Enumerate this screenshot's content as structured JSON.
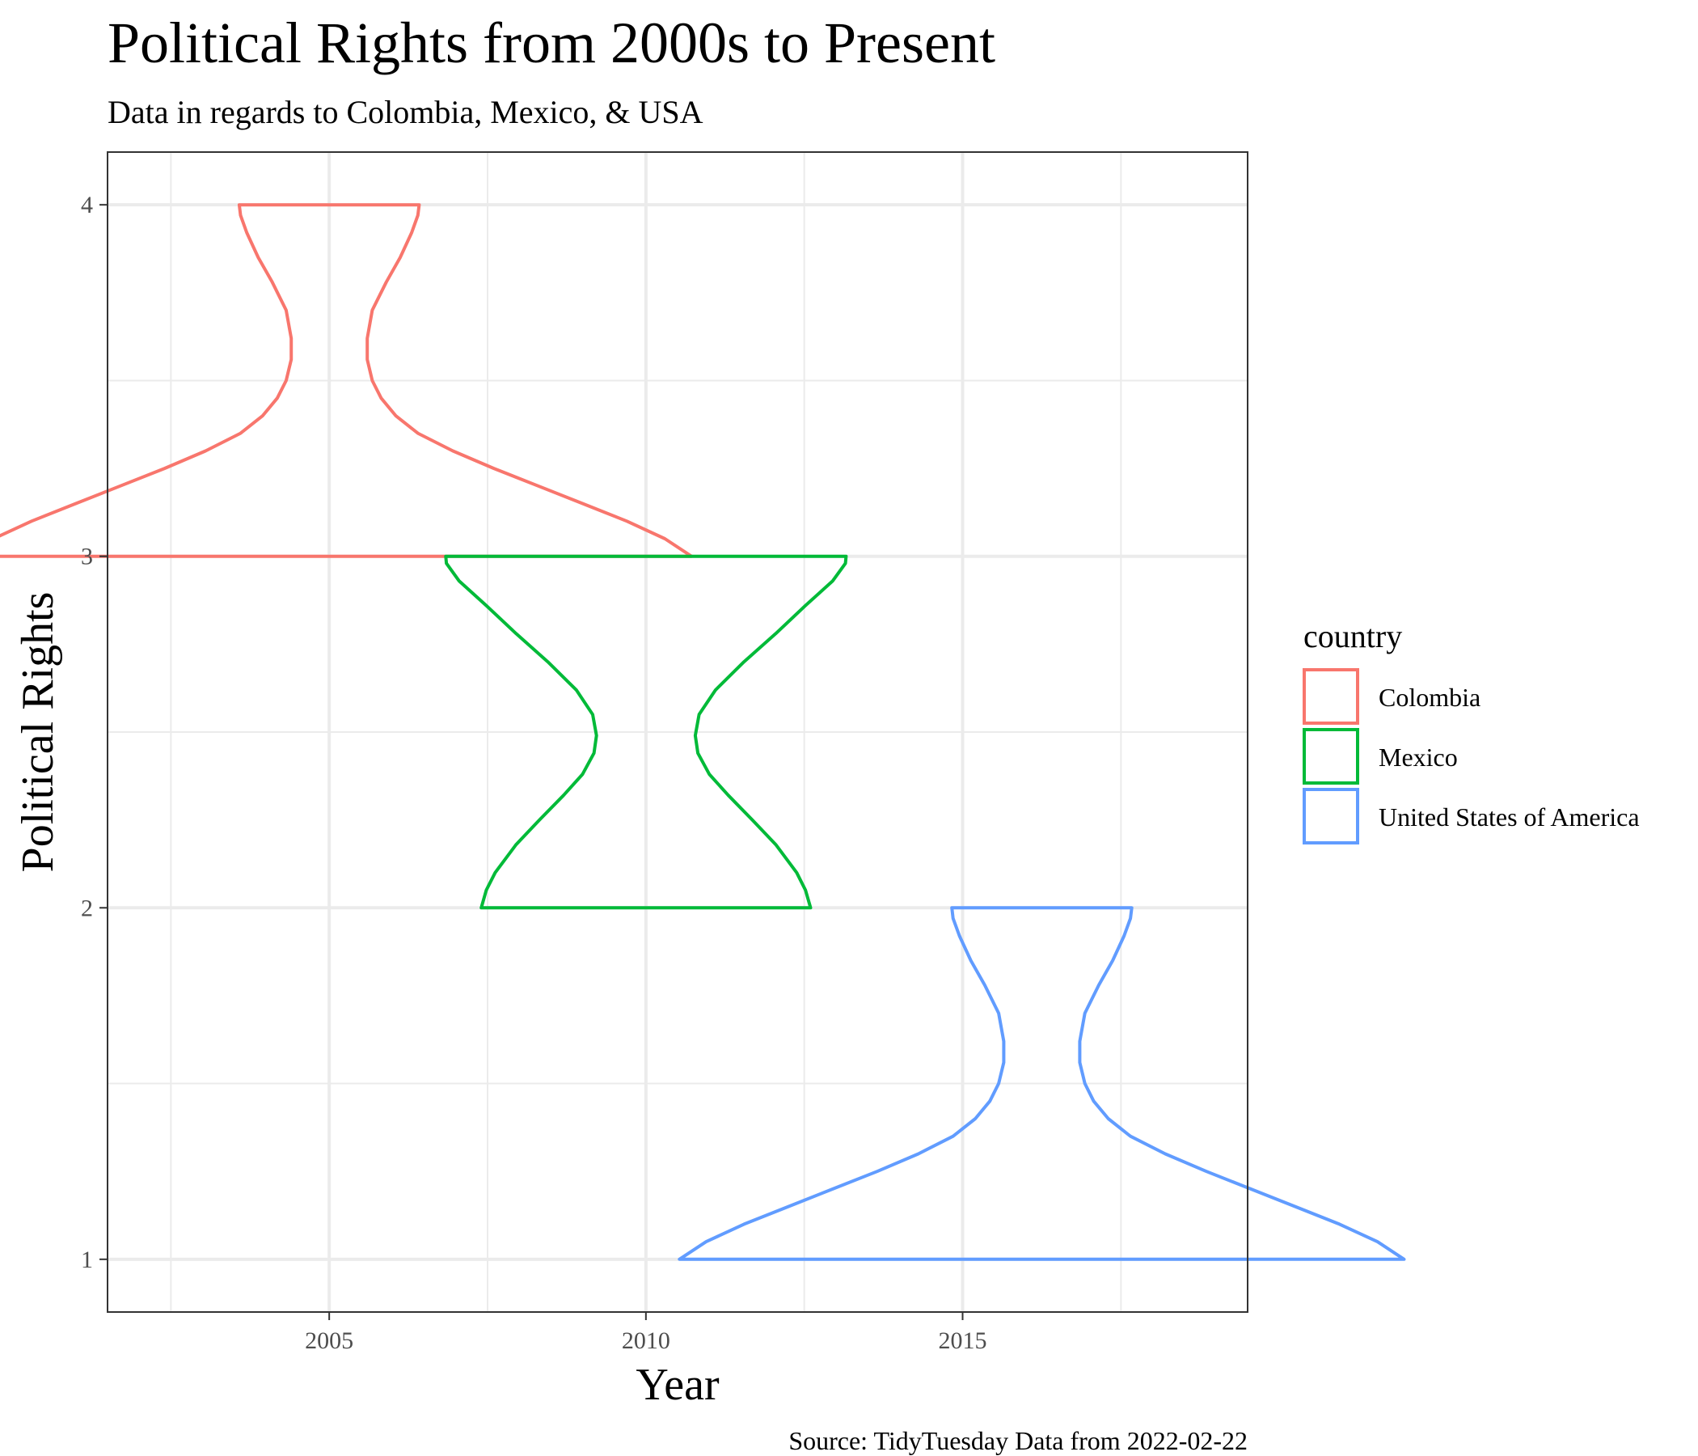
{
  "chart_data": {
    "type": "violin",
    "title": "Political Rights from 2000s to Present",
    "subtitle": "Data in regards to Colombia, Mexico, & USA",
    "xlabel": "Year",
    "ylabel": "Political Rights",
    "caption": "Source: TidyTuesday Data from 2022-02-22",
    "xlim": [
      2001.5,
      2019.5
    ],
    "ylim": [
      0.85,
      4.15
    ],
    "x_ticks": [
      2005,
      2010,
      2015
    ],
    "x_minor_ticks": [
      2002.5,
      2007.5,
      2012.5,
      2017.5
    ],
    "y_ticks": [
      1,
      2,
      3,
      4
    ],
    "y_minor_ticks": [
      1.5,
      2.5,
      3.5
    ],
    "grid": true,
    "legend": {
      "title": "country",
      "position": "right"
    },
    "series": [
      {
        "name": "Colombia",
        "color": "#F8766D",
        "center_x": 2005,
        "y_range": [
          3,
          4
        ],
        "profile": [
          [
            3.0,
            5.72
          ],
          [
            3.05,
            5.3
          ],
          [
            3.1,
            4.7
          ],
          [
            3.15,
            4.0
          ],
          [
            3.2,
            3.3
          ],
          [
            3.25,
            2.6
          ],
          [
            3.3,
            1.95
          ],
          [
            3.35,
            1.4
          ],
          [
            3.4,
            1.05
          ],
          [
            3.45,
            0.82
          ],
          [
            3.5,
            0.68
          ],
          [
            3.56,
            0.6
          ],
          [
            3.62,
            0.6
          ],
          [
            3.7,
            0.68
          ],
          [
            3.78,
            0.9
          ],
          [
            3.85,
            1.12
          ],
          [
            3.92,
            1.3
          ],
          [
            3.97,
            1.4
          ],
          [
            4.0,
            1.42
          ]
        ]
      },
      {
        "name": "Mexico",
        "color": "#00BA38",
        "center_x": 2010,
        "y_range": [
          2,
          3
        ],
        "profile": [
          [
            2.0,
            2.6
          ],
          [
            2.05,
            2.52
          ],
          [
            2.1,
            2.38
          ],
          [
            2.18,
            2.05
          ],
          [
            2.25,
            1.68
          ],
          [
            2.32,
            1.3
          ],
          [
            2.38,
            1.0
          ],
          [
            2.44,
            0.82
          ],
          [
            2.49,
            0.78
          ],
          [
            2.55,
            0.84
          ],
          [
            2.62,
            1.1
          ],
          [
            2.7,
            1.55
          ],
          [
            2.78,
            2.05
          ],
          [
            2.86,
            2.52
          ],
          [
            2.93,
            2.95
          ],
          [
            2.98,
            3.15
          ],
          [
            3.0,
            3.16
          ]
        ]
      },
      {
        "name": "United States of America",
        "color": "#619CFF",
        "center_x": 2016.25,
        "y_range": [
          1,
          2
        ],
        "profile": [
          [
            1.0,
            5.72
          ],
          [
            1.05,
            5.3
          ],
          [
            1.1,
            4.7
          ],
          [
            1.15,
            4.0
          ],
          [
            1.2,
            3.3
          ],
          [
            1.25,
            2.6
          ],
          [
            1.3,
            1.95
          ],
          [
            1.35,
            1.4
          ],
          [
            1.4,
            1.05
          ],
          [
            1.45,
            0.82
          ],
          [
            1.5,
            0.68
          ],
          [
            1.56,
            0.6
          ],
          [
            1.62,
            0.6
          ],
          [
            1.7,
            0.68
          ],
          [
            1.78,
            0.9
          ],
          [
            1.85,
            1.12
          ],
          [
            1.92,
            1.3
          ],
          [
            1.97,
            1.4
          ],
          [
            2.0,
            1.42
          ]
        ]
      }
    ]
  }
}
